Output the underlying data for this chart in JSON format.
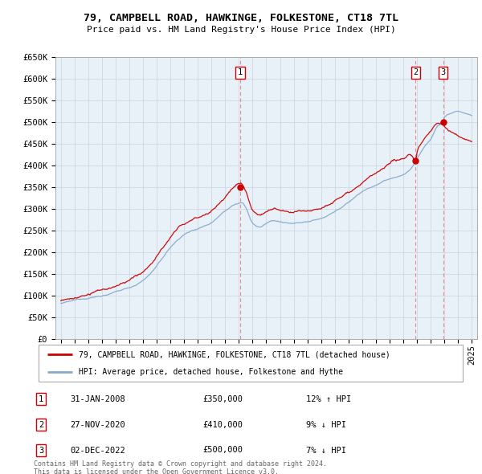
{
  "title": "79, CAMPBELL ROAD, HAWKINGE, FOLKESTONE, CT18 7TL",
  "subtitle": "Price paid vs. HM Land Registry's House Price Index (HPI)",
  "ylabel_ticks": [
    "£0",
    "£50K",
    "£100K",
    "£150K",
    "£200K",
    "£250K",
    "£300K",
    "£350K",
    "£400K",
    "£450K",
    "£500K",
    "£550K",
    "£600K",
    "£650K"
  ],
  "ytick_values": [
    0,
    50000,
    100000,
    150000,
    200000,
    250000,
    300000,
    350000,
    400000,
    450000,
    500000,
    550000,
    600000,
    650000
  ],
  "xlim_start": 1994.6,
  "xlim_end": 2025.4,
  "ylim_min": 0,
  "ylim_max": 650000,
  "property_color": "#cc0000",
  "hpi_color": "#88aacc",
  "dashed_line_color": "#ee8888",
  "legend_property_label": "79, CAMPBELL ROAD, HAWKINGE, FOLKESTONE, CT18 7TL (detached house)",
  "legend_hpi_label": "HPI: Average price, detached house, Folkestone and Hythe",
  "transactions": [
    {
      "num": 1,
      "date": "31-JAN-2008",
      "price": 350000,
      "year": 2008.08,
      "pct": "12%",
      "dir": "↑"
    },
    {
      "num": 2,
      "date": "27-NOV-2020",
      "price": 410000,
      "year": 2020.9,
      "pct": "9%",
      "dir": "↓"
    },
    {
      "num": 3,
      "date": "02-DEC-2022",
      "price": 500000,
      "year": 2022.92,
      "pct": "7%",
      "dir": "↓"
    }
  ],
  "footer_line1": "Contains HM Land Registry data © Crown copyright and database right 2024.",
  "footer_line2": "This data is licensed under the Open Government Licence v3.0.",
  "background_color": "#ffffff",
  "plot_bg_color": "#e8f0f8",
  "grid_color": "#c8d4e0"
}
